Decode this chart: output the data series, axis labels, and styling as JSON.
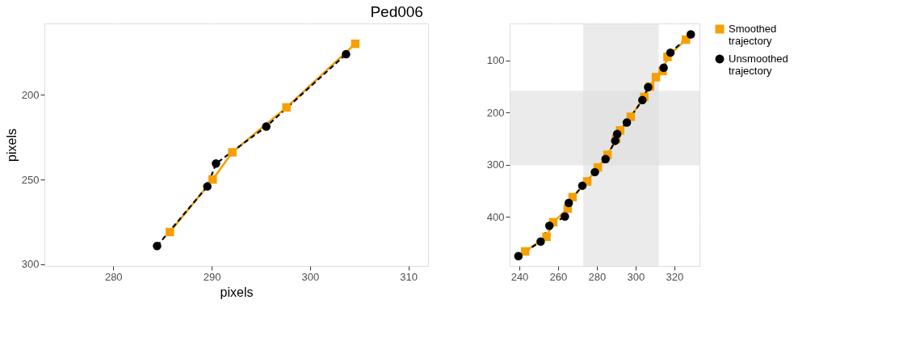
{
  "chart_data": [
    {
      "type": "line",
      "title": "Ped006",
      "xlabel": "pixels",
      "ylabel": "pixels",
      "xlim": [
        273,
        312
      ],
      "ylim": [
        301,
        158
      ],
      "xticks": [
        280,
        290,
        300,
        310
      ],
      "yticks": [
        200,
        250,
        300
      ],
      "grid": true,
      "series": [
        {
          "color": "#f5a000",
          "marker": "square",
          "line_style": "solid",
          "x": [
            285.75,
            290.1,
            292.1,
            297.6,
            304.6
          ],
          "values": [
            281,
            250,
            234,
            207.5,
            170
          ]
        },
        {
          "color": "#000000",
          "marker": "circle",
          "line_style": "dashed",
          "x": [
            284.45,
            289.56,
            290.44,
            295.55,
            303.66
          ],
          "values": [
            289.2,
            254.1,
            240.6,
            218.8,
            176.1
          ]
        }
      ]
    },
    {
      "type": "line",
      "xlim": [
        235,
        333
      ],
      "ylim": [
        494,
        29
      ],
      "xticks": [
        240,
        260,
        280,
        300,
        320
      ],
      "yticks": [
        100,
        200,
        300,
        400
      ],
      "grid": true,
      "legend": "right",
      "bands": [
        {
          "axis": "x",
          "from": 273,
          "to": 312,
          "color": "#dedede"
        },
        {
          "axis": "y",
          "from": 158,
          "to": 301,
          "color": "#dedede"
        }
      ],
      "series": [
        {
          "name": "Smoothed trajectory",
          "color": "#f5a000",
          "marker": "square",
          "line_style": "solid",
          "x": [
            243,
            254,
            257.5,
            265,
            267.5,
            275,
            280.5,
            285.5,
            290,
            292,
            297.5,
            304.5,
            307.5,
            310.5,
            314,
            316.5,
            326
          ],
          "values": [
            466,
            438,
            410,
            384,
            362,
            332,
            305,
            281,
            250,
            234,
            208,
            170,
            150,
            132,
            120,
            93,
            60
          ]
        },
        {
          "name": "Unsmoothed trajectory",
          "color": "#000000",
          "marker": "circle",
          "line_style": "dashed",
          "x": [
            239.5,
            251,
            255.5,
            263.5,
            265.5,
            272.5,
            279,
            284.5,
            289.5,
            290.5,
            295.5,
            303.5,
            306.5,
            314.5,
            318,
            328.5
          ],
          "values": [
            475,
            447,
            417,
            399,
            373,
            340,
            314,
            289,
            254,
            241,
            219,
            176,
            151,
            114,
            85,
            50
          ]
        }
      ]
    }
  ]
}
